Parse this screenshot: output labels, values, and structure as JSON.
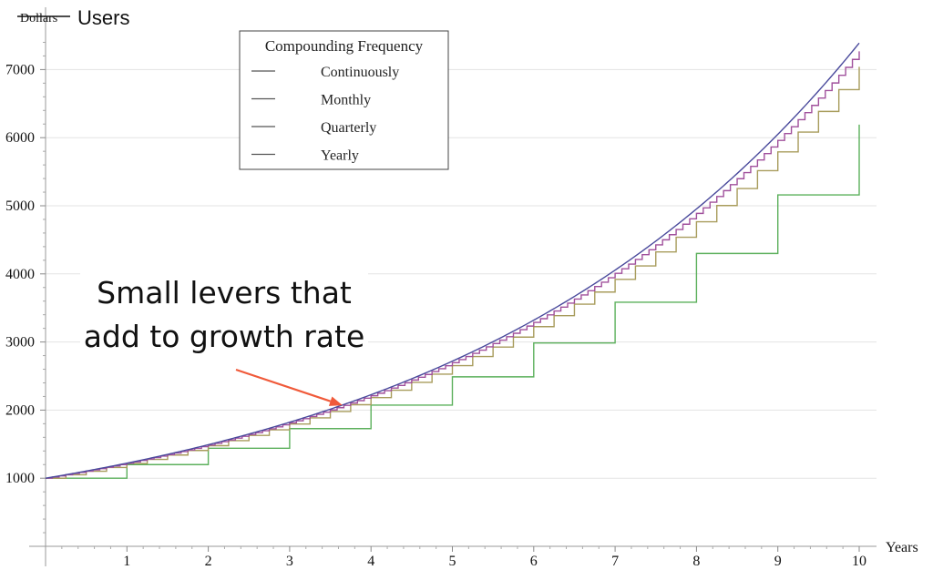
{
  "chart_data": {
    "type": "line",
    "title": "",
    "xlabel": "Years",
    "ylabel_struck": "Dollars",
    "ylabel": "Users",
    "xlim": [
      0,
      10
    ],
    "ylim": [
      0,
      7500
    ],
    "x_ticks": [
      1,
      2,
      3,
      4,
      5,
      6,
      7,
      8,
      9,
      10
    ],
    "y_ticks": [
      1000,
      2000,
      3000,
      4000,
      5000,
      6000,
      7000
    ],
    "principal": 1000,
    "annual_rate": 0.2,
    "grid": true,
    "legend": {
      "title": "Compounding Frequency",
      "placement": "top-center",
      "entries": [
        "Continuously",
        "Monthly",
        "Quarterly",
        "Yearly"
      ]
    },
    "series": [
      {
        "name": "Continuously",
        "compounding": "continuous",
        "periods_per_year": null,
        "color": "#4a4a9c"
      },
      {
        "name": "Monthly",
        "compounding": "discrete",
        "periods_per_year": 12,
        "color": "#a0509c"
      },
      {
        "name": "Quarterly",
        "compounding": "discrete",
        "periods_per_year": 4,
        "color": "#a89c5c"
      },
      {
        "name": "Yearly",
        "compounding": "discrete",
        "periods_per_year": 1,
        "color": "#5cb05c"
      }
    ],
    "legend_swatch_color": "#555555",
    "annotation": {
      "lines": [
        "Small levers that",
        "add to growth rate"
      ],
      "arrow_color": "#f05a3a",
      "arrow_points_to": {
        "x": 3.65,
        "y": 2070
      }
    }
  }
}
